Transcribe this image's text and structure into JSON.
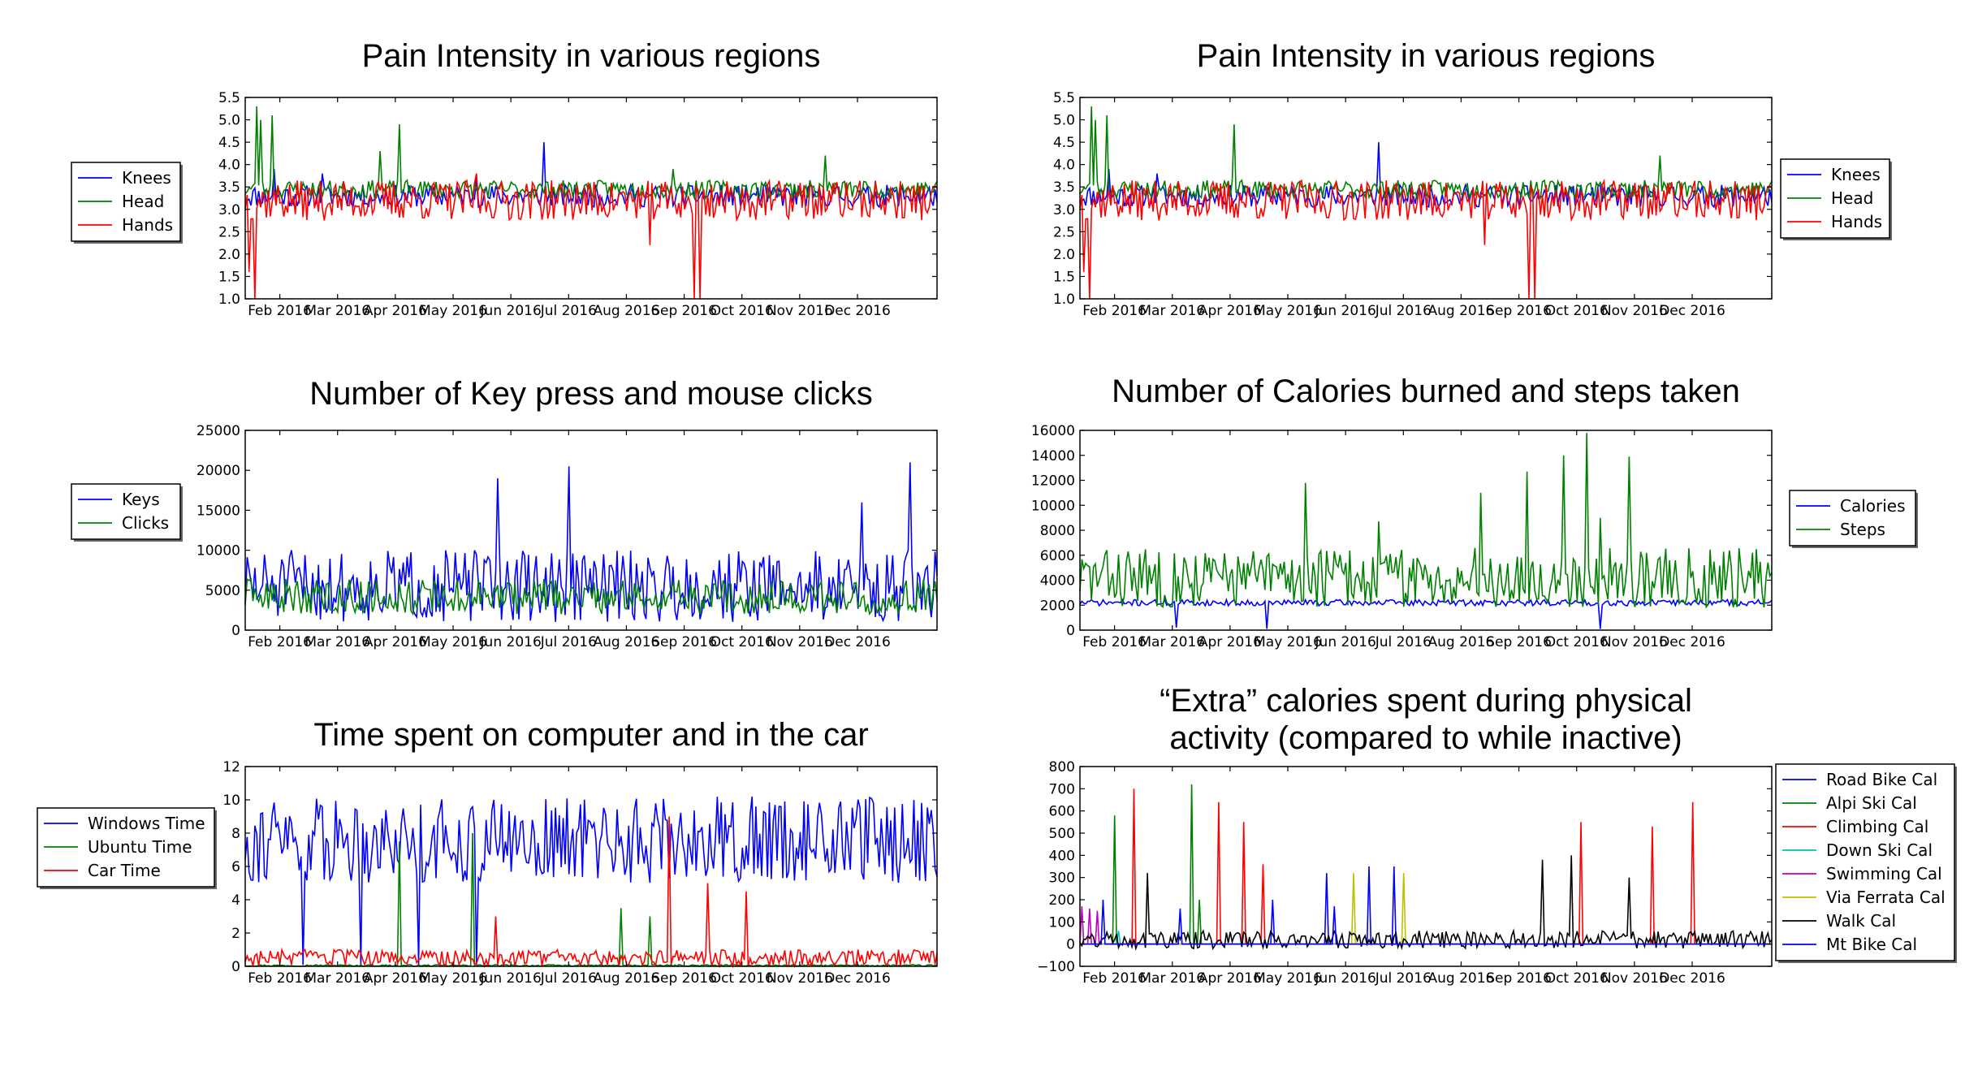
{
  "figure": {
    "background": "#ffffff"
  },
  "chart_data": [
    {
      "id": "pain-left",
      "type": "line",
      "title": [
        "Pain Intensity in various regions"
      ],
      "xlabel": "",
      "ylabel": "",
      "x_ticks": [
        "Feb 2016",
        "Mar 2016",
        "Apr 2016",
        "May 2016",
        "Jun 2016",
        "Jul 2016",
        "Aug 2016",
        "Sep 2016",
        "Oct 2016",
        "Nov 2016",
        "Dec 2016"
      ],
      "y_ticks": [
        "1.0",
        "1.5",
        "2.0",
        "2.5",
        "3.0",
        "3.5",
        "4.0",
        "4.5",
        "5.0",
        "5.5"
      ],
      "ylim": [
        1.0,
        5.5
      ],
      "legend": {
        "location": "left-outside"
      },
      "series": [
        {
          "name": "Knees",
          "color": "#0000ff",
          "base": 3.3,
          "amp": 0.25,
          "spikes": [
            [
              15,
              3.9
            ],
            [
              40,
              3.8
            ],
            [
              155,
              4.5
            ],
            [
              120,
              3.7
            ]
          ],
          "seed": 11
        },
        {
          "name": "Head",
          "color": "#008000",
          "base": 3.45,
          "amp": 0.2,
          "spikes": [
            [
              6,
              5.3
            ],
            [
              8,
              5.0
            ],
            [
              14,
              5.1
            ],
            [
              70,
              4.3
            ],
            [
              80,
              4.9
            ],
            [
              222,
              3.9
            ],
            [
              301,
              4.2
            ]
          ],
          "seed": 23
        },
        {
          "name": "Hands",
          "color": "#ff0000",
          "base": 3.2,
          "amp": 0.45,
          "spikes": [
            [
              2,
              1.6
            ],
            [
              5,
              1.0
            ],
            [
              120,
              3.8
            ],
            [
              210,
              2.2
            ],
            [
              233,
              1.0
            ],
            [
              236,
              1.0
            ]
          ],
          "seed": 37
        }
      ]
    },
    {
      "id": "pain-right",
      "type": "line",
      "title": [
        "Pain Intensity in various regions"
      ],
      "xlabel": "",
      "ylabel": "",
      "x_ticks": [
        "Feb 2016",
        "Mar 2016",
        "Apr 2016",
        "May 2016",
        "Jun 2016",
        "Jul 2016",
        "Aug 2016",
        "Sep 2016",
        "Oct 2016",
        "Nov 2016",
        "Dec 2016"
      ],
      "y_ticks": [
        "1.0",
        "1.5",
        "2.0",
        "2.5",
        "3.0",
        "3.5",
        "4.0",
        "4.5",
        "5.0",
        "5.5"
      ],
      "ylim": [
        1.0,
        5.5
      ],
      "legend": {
        "location": "right-outside"
      },
      "series": [
        {
          "name": "Knees",
          "color": "#0000ff",
          "base": 3.3,
          "amp": 0.25,
          "spikes": [
            [
              15,
              3.9
            ],
            [
              40,
              3.8
            ],
            [
              155,
              4.5
            ]
          ],
          "seed": 11
        },
        {
          "name": "Head",
          "color": "#008000",
          "base": 3.45,
          "amp": 0.2,
          "spikes": [
            [
              6,
              5.3
            ],
            [
              8,
              5.0
            ],
            [
              14,
              5.1
            ],
            [
              80,
              4.9
            ],
            [
              301,
              4.2
            ]
          ],
          "seed": 23
        },
        {
          "name": "Hands",
          "color": "#ff0000",
          "base": 3.2,
          "amp": 0.45,
          "spikes": [
            [
              2,
              1.6
            ],
            [
              5,
              1.0
            ],
            [
              210,
              2.2
            ],
            [
              233,
              1.0
            ],
            [
              236,
              1.0
            ]
          ],
          "seed": 37
        }
      ]
    },
    {
      "id": "keys-clicks",
      "type": "line",
      "title": [
        "Number of Key press and mouse clicks"
      ],
      "xlabel": "",
      "ylabel": "",
      "x_ticks": [
        "Feb 2016",
        "Mar 2016",
        "Apr 2016",
        "May 2016",
        "Jun 2016",
        "Jul 2016",
        "Aug 2016",
        "Sep 2016",
        "Oct 2016",
        "Nov 2016",
        "Dec 2016"
      ],
      "y_ticks": [
        "0",
        "5000",
        "10000",
        "15000",
        "20000",
        "25000"
      ],
      "ylim": [
        0,
        25000
      ],
      "legend": {
        "location": "left-outside"
      },
      "series": [
        {
          "name": "Keys",
          "color": "#0000ff",
          "base": 5500,
          "amp": 4500,
          "spikes": [
            [
              131,
              19000
            ],
            [
              168,
              20500
            ],
            [
              345,
              21000
            ],
            [
              320,
              16000
            ]
          ],
          "seed": 51
        },
        {
          "name": "Clicks",
          "color": "#008000",
          "base": 4200,
          "amp": 2200,
          "spikes": [],
          "seed": 63
        }
      ]
    },
    {
      "id": "calories-steps",
      "type": "line",
      "title": [
        "Number of Calories burned and steps taken"
      ],
      "xlabel": "",
      "ylabel": "",
      "x_ticks": [
        "Feb 2016",
        "Mar 2016",
        "Apr 2016",
        "May 2016",
        "Jun 2016",
        "Jul 2016",
        "Aug 2016",
        "Sep 2016",
        "Oct 2016",
        "Nov 2016",
        "Dec 2016"
      ],
      "y_ticks": [
        "0",
        "2000",
        "4000",
        "6000",
        "8000",
        "10000",
        "12000",
        "14000",
        "16000"
      ],
      "ylim": [
        0,
        16000
      ],
      "legend": {
        "location": "right-outside"
      },
      "series": [
        {
          "name": "Calories",
          "color": "#0000ff",
          "base": 2200,
          "amp": 250,
          "spikes": [
            [
              50,
              200
            ],
            [
              97,
              100
            ],
            [
              270,
              100
            ]
          ],
          "seed": 71
        },
        {
          "name": "Steps",
          "color": "#008000",
          "base": 4200,
          "amp": 2400,
          "spikes": [
            [
              117,
              11800
            ],
            [
              155,
              8700
            ],
            [
              208,
              11000
            ],
            [
              232,
              12700
            ],
            [
              251,
              14000
            ],
            [
              263,
              15800
            ],
            [
              285,
              13900
            ],
            [
              270,
              9000
            ]
          ],
          "seed": 83
        }
      ]
    },
    {
      "id": "time-computer-car",
      "type": "line",
      "title": [
        "Time spent on computer and in the car"
      ],
      "xlabel": "",
      "ylabel": "",
      "x_ticks": [
        "Feb 2016",
        "Mar 2016",
        "Apr 2016",
        "May 2016",
        "Jun 2016",
        "Jul 2016",
        "Aug 2016",
        "Sep 2016",
        "Oct 2016",
        "Nov 2016",
        "Dec 2016"
      ],
      "y_ticks": [
        "0",
        "2",
        "4",
        "6",
        "8",
        "10",
        "12"
      ],
      "ylim": [
        0,
        12
      ],
      "legend": {
        "location": "left-outside"
      },
      "series": [
        {
          "name": "Windows Time",
          "color": "#0000ff",
          "base": 7.6,
          "amp": 2.6,
          "spikes": [
            [
              30,
              0.1
            ],
            [
              60,
              0.1
            ],
            [
              90,
              0.1
            ],
            [
              120,
              0.1
            ]
          ],
          "seed": 91
        },
        {
          "name": "Ubuntu Time",
          "color": "#008000",
          "base": 0.05,
          "amp": 0.05,
          "spikes": [
            [
              80,
              7.5
            ],
            [
              118,
              8.0
            ],
            [
              195,
              3.5
            ],
            [
              210,
              3.0
            ]
          ],
          "seed": 97
        },
        {
          "name": "Car Time",
          "color": "#ff0000",
          "base": 0.5,
          "amp": 0.5,
          "spikes": [
            [
              220,
              9.0
            ],
            [
              240,
              5.0
            ],
            [
              260,
              4.5
            ],
            [
              130,
              3.0
            ]
          ],
          "seed": 103
        }
      ]
    },
    {
      "id": "extra-calories",
      "type": "line",
      "title": [
        "“Extra” calories spent during physical",
        "activity (compared to while inactive)"
      ],
      "xlabel": "",
      "ylabel": "",
      "x_ticks": [
        "Feb 2016",
        "Mar 2016",
        "Apr 2016",
        "May 2016",
        "Jun 2016",
        "Jul 2016",
        "Aug 2016",
        "Sep 2016",
        "Oct 2016",
        "Nov 2016",
        "Dec 2016"
      ],
      "y_ticks": [
        "−100",
        "0",
        "100",
        "200",
        "300",
        "400",
        "500",
        "600",
        "700",
        "800"
      ],
      "ylim": [
        -100,
        800
      ],
      "legend": {
        "location": "right-outside"
      },
      "series": [
        {
          "name": "Road Bike Cal",
          "color": "#0000ff",
          "base": 0,
          "amp": 0,
          "spikes": [
            [
              128,
              320
            ],
            [
              150,
              350
            ],
            [
              163,
              350
            ],
            [
              100,
              200
            ]
          ],
          "seed": 111
        },
        {
          "name": "Alpi Ski Cal",
          "color": "#008000",
          "base": 0,
          "amp": 0,
          "spikes": [
            [
              18,
              580
            ],
            [
              58,
              720
            ],
            [
              62,
              200
            ]
          ],
          "seed": 113
        },
        {
          "name": "Climbing Cal",
          "color": "#ff0000",
          "base": 0,
          "amp": 0,
          "spikes": [
            [
              28,
              700
            ],
            [
              72,
              640
            ],
            [
              85,
              550
            ],
            [
              95,
              360
            ],
            [
              260,
              550
            ],
            [
              297,
              530
            ],
            [
              318,
              640
            ]
          ],
          "seed": 117
        },
        {
          "name": "Down Ski Cal",
          "color": "#00bfbf",
          "base": 0,
          "amp": 0,
          "spikes": [
            [
              20,
              60
            ]
          ],
          "seed": 119
        },
        {
          "name": "Swimming Cal",
          "color": "#bf00bf",
          "base": 0,
          "amp": 0,
          "spikes": [
            [
              1,
              170
            ],
            [
              5,
              160
            ],
            [
              9,
              150
            ]
          ],
          "seed": 123
        },
        {
          "name": "Via Ferrata Cal",
          "color": "#bfbf00",
          "base": 0,
          "amp": 0,
          "spikes": [
            [
              142,
              320
            ],
            [
              168,
              320
            ]
          ],
          "seed": 127
        },
        {
          "name": "Walk Cal",
          "color": "#000000",
          "base": 20,
          "amp": 40,
          "spikes": [
            [
              240,
              380
            ],
            [
              255,
              400
            ],
            [
              35,
              320
            ],
            [
              285,
              300
            ]
          ],
          "seed": 131
        },
        {
          "name": "Mt Bike Cal",
          "color": "#0000ff",
          "base": 0,
          "amp": 0,
          "spikes": [
            [
              12,
              200
            ],
            [
              52,
              160
            ],
            [
              132,
              170
            ]
          ],
          "seed": 137
        }
      ]
    }
  ]
}
